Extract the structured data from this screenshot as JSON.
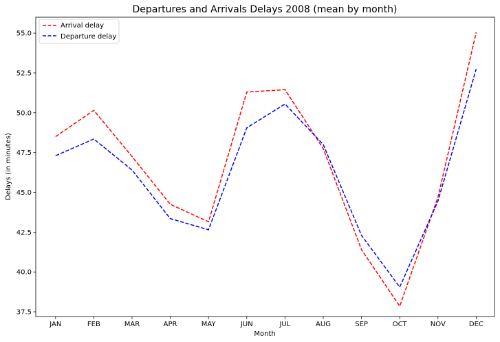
{
  "chart_data": {
    "type": "line",
    "title": "Departures and Arrivals Delays 2008 (mean by month)",
    "xlabel": "Month",
    "ylabel": "Delays (in minutes)",
    "categories": [
      "JAN",
      "FEB",
      "MAR",
      "APR",
      "MAY",
      "JUN",
      "JUL",
      "AUG",
      "SEP",
      "OCT",
      "NOV",
      "DEC"
    ],
    "ylim": [
      37.2,
      56.0
    ],
    "yticks": [
      37.5,
      40.0,
      42.5,
      45.0,
      47.5,
      50.0,
      52.5,
      55.0
    ],
    "ytick_labels": [
      "37.5",
      "40.0",
      "42.5",
      "45.0",
      "47.5",
      "50.0",
      "52.5",
      "55.0"
    ],
    "grid": false,
    "legend_position": "top-left",
    "series": [
      {
        "name": "Arrival delay",
        "color": "#ff0000",
        "line_style": "dashed",
        "values": [
          48.5,
          50.15,
          47.25,
          44.25,
          43.15,
          51.3,
          51.45,
          47.75,
          41.4,
          37.85,
          44.7,
          55.05
        ]
      },
      {
        "name": "Departure delay",
        "color": "#0000ff",
        "line_style": "dashed",
        "values": [
          47.3,
          48.35,
          46.4,
          43.35,
          42.65,
          49.05,
          50.55,
          48.0,
          42.3,
          39.05,
          44.45,
          52.75
        ]
      }
    ]
  }
}
